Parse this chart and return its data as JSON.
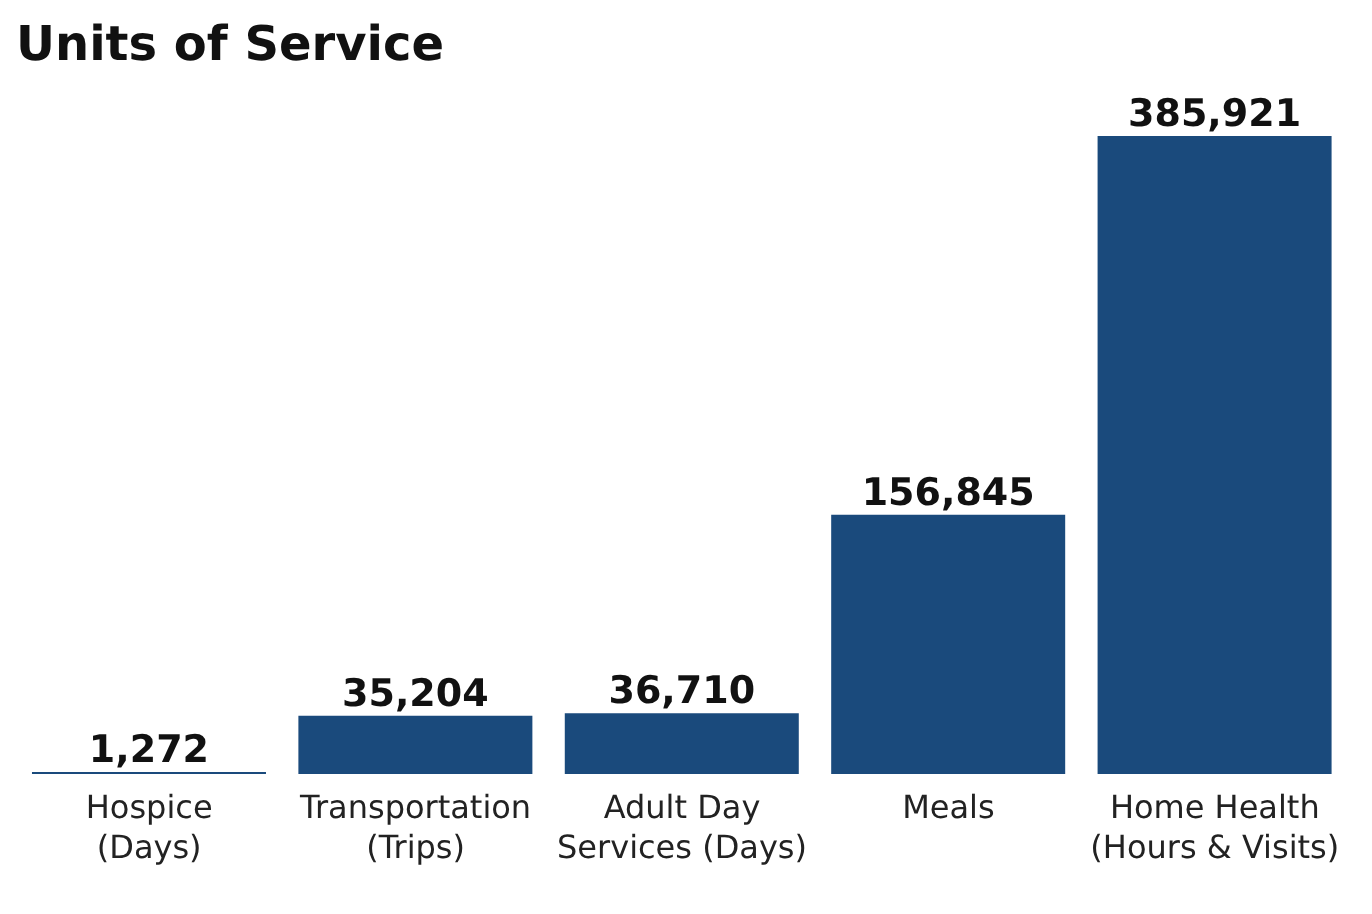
{
  "chart_data": {
    "type": "bar",
    "title": "Units of Service",
    "categories": [
      "Hospice\n(Days)",
      "Transportation\n(Trips)",
      "Adult Day\nServices (Days)",
      "Meals",
      "Home Health\n(Hours & Visits)"
    ],
    "values": [
      1272,
      35204,
      36710,
      156845,
      385921
    ],
    "value_labels": [
      "1,272",
      "35,204",
      "36,710",
      "156,845",
      "385,921"
    ],
    "color": "#1a4a7c",
    "grid": false,
    "legend": false
  }
}
